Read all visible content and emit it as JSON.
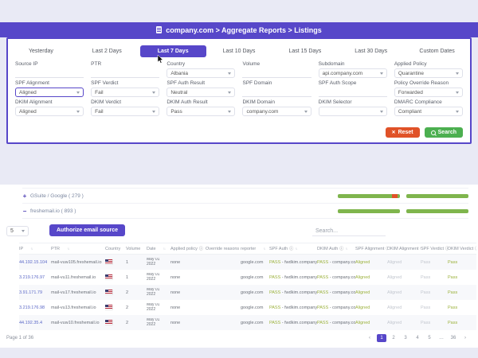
{
  "colors": {
    "accent": "#5747c9",
    "green": "#7fb54d",
    "red": "#e05228",
    "reset_btn": "#e05228",
    "search_btn": "#4caf50",
    "pass_text": "#9cb23d"
  },
  "titlebar": {
    "title": "company.com > Aggregate Reports > Listings"
  },
  "tabs": [
    {
      "label": "Yesterday"
    },
    {
      "label": "Last 2 Days"
    },
    {
      "label": "Last 7 Days",
      "active": true
    },
    {
      "label": "Last 10 Days"
    },
    {
      "label": "Last 15 Days"
    },
    {
      "label": "Last 30 Days"
    },
    {
      "label": "Custom Dates"
    }
  ],
  "filters": {
    "fields": [
      {
        "label": "Source IP",
        "type": "input",
        "value": ""
      },
      {
        "label": "PTR",
        "type": "input",
        "value": ""
      },
      {
        "label": "Country",
        "type": "select",
        "value": "Albania"
      },
      {
        "label": "Volume",
        "type": "input",
        "value": ""
      },
      {
        "label": "Subdomain",
        "type": "select",
        "value": "api.company.com"
      },
      {
        "label": "Applied Policy",
        "type": "select",
        "value": "Quarantine"
      },
      {
        "label": "SPF Alignment",
        "type": "select",
        "value": "Aligned",
        "focused": true
      },
      {
        "label": "SPF Verdict",
        "type": "select",
        "value": "Fail"
      },
      {
        "label": "SPF Auth Result",
        "type": "select",
        "value": "Neutral"
      },
      {
        "label": "SPF Domain",
        "type": "input",
        "value": ""
      },
      {
        "label": "SPF Auth Scope",
        "type": "input",
        "value": ""
      },
      {
        "label": "Policy Override Reason",
        "type": "select",
        "value": "Forwarded"
      },
      {
        "label": "DKIM Alignment",
        "type": "select",
        "value": "Aligned"
      },
      {
        "label": "DKIM Verdict",
        "type": "select",
        "value": "Fail"
      },
      {
        "label": "DKIM Auth Result",
        "type": "select",
        "value": "Pass"
      },
      {
        "label": "DKIM Domain",
        "type": "select",
        "value": "company.com"
      },
      {
        "label": "DKIM Selector",
        "type": "select",
        "value": ""
      },
      {
        "label": "DMARC Compliance",
        "type": "select",
        "value": "Compliant"
      }
    ],
    "reset_label": "Reset",
    "search_label": "Search"
  },
  "groups": [
    {
      "name": "GSuite / Google ( 279 )",
      "expand": "+",
      "bar1": [
        {
          "c": "green",
          "pct": 87
        },
        {
          "c": "red",
          "pct": 9
        },
        {
          "c": "green",
          "pct": 4
        }
      ],
      "bar2": [
        {
          "c": "green",
          "pct": 100
        }
      ]
    },
    {
      "name": "freshemail.io ( 893 )",
      "expand": "−",
      "bar1": [
        {
          "c": "green",
          "pct": 100
        }
      ],
      "bar2": [
        {
          "c": "green",
          "pct": 100
        }
      ]
    }
  ],
  "toolbar": {
    "page_size": "5",
    "authorize_label": "Authorize email source",
    "search_placeholder": "Search..."
  },
  "table": {
    "columns": [
      {
        "label": "IP",
        "sort": true
      },
      {
        "label": "PTR",
        "sort": true
      },
      {
        "label": "Country",
        "sort": true
      },
      {
        "label": "Volume",
        "sort": true
      },
      {
        "label": "Date",
        "sort": true
      },
      {
        "label": "Applied policy",
        "info": true,
        "sort": true
      },
      {
        "label": "Override reasons",
        "info": true,
        "sort": true
      },
      {
        "label": "reporter",
        "sort": true
      },
      {
        "label": "SPF Auth",
        "info": true,
        "sort": true
      },
      {
        "label": "DKIM Auth",
        "info": true,
        "sort": true
      },
      {
        "label": "SPF Alignment",
        "info": true,
        "sort": true
      },
      {
        "label": "DKIM Alignment",
        "info": true,
        "sort": true
      },
      {
        "label": "SPF Verdict",
        "info": true,
        "sort": true
      },
      {
        "label": "DKIM Verdict",
        "info": true,
        "sort": true
      }
    ],
    "rows": [
      {
        "ip": "44.192.15.104",
        "ptr": "mail-vuw105.freshemail.io",
        "volume": "1",
        "date_line1": "May 01",
        "date_line2": "2022",
        "policy": "none",
        "override": "",
        "reporter": "google.com",
        "spf_status": "PASS",
        "spf_domain": "- fwdkim.company.com",
        "dkim_status": "PASS",
        "dkim_domain": "- company.com",
        "spf_align": "Aligned",
        "dkim_align": "Aligned",
        "spf_verdict": "Pass",
        "dkim_verdict": "Pass"
      },
      {
        "ip": "3.219.176.97",
        "ptr": "mail-vu11.freshemail.io",
        "volume": "1",
        "date_line1": "May 01",
        "date_line2": "2022",
        "policy": "none",
        "override": "",
        "reporter": "google.com",
        "spf_status": "PASS",
        "spf_domain": "- fwdkim.company.com",
        "dkim_status": "PASS",
        "dkim_domain": "- company.com",
        "spf_align": "Aligned",
        "dkim_align": "Aligned",
        "spf_verdict": "Pass",
        "dkim_verdict": "Pass"
      },
      {
        "ip": "3.91.171.79",
        "ptr": "mail-vu17.freshemail.io",
        "volume": "2",
        "date_line1": "May 01",
        "date_line2": "2022",
        "policy": "none",
        "override": "",
        "reporter": "google.com",
        "spf_status": "PASS",
        "spf_domain": "- fwdkim.company.com",
        "dkim_status": "PASS",
        "dkim_domain": "- company.com",
        "spf_align": "Aligned",
        "dkim_align": "Aligned",
        "spf_verdict": "Pass",
        "dkim_verdict": "Pass"
      },
      {
        "ip": "3.219.176.98",
        "ptr": "mail-vu13.freshemail.io",
        "volume": "2",
        "date_line1": "May 01",
        "date_line2": "2022",
        "policy": "none",
        "override": "",
        "reporter": "google.com",
        "spf_status": "PASS",
        "spf_domain": "- fwdkim.company.com",
        "dkim_status": "PASS",
        "dkim_domain": "- company.com",
        "spf_align": "Aligned",
        "dkim_align": "Aligned",
        "spf_verdict": "Pass",
        "dkim_verdict": "Pass"
      },
      {
        "ip": "44.192.35.4",
        "ptr": "mail-vuw10.freshemail.io",
        "volume": "2",
        "date_line1": "May 01",
        "date_line2": "2022",
        "policy": "none",
        "override": "",
        "reporter": "google.com",
        "spf_status": "PASS",
        "spf_domain": "- fwdkim.company.com",
        "dkim_status": "PASS",
        "dkim_domain": "- company.com",
        "spf_align": "Aligned",
        "dkim_align": "Aligned",
        "spf_verdict": "Pass",
        "dkim_verdict": "Pass"
      }
    ]
  },
  "pagination": {
    "summary": "Page 1 of 36",
    "items": [
      {
        "label": "‹"
      },
      {
        "label": "1",
        "active": true
      },
      {
        "label": "2"
      },
      {
        "label": "3"
      },
      {
        "label": "4"
      },
      {
        "label": "5"
      },
      {
        "label": "…"
      },
      {
        "label": "36"
      },
      {
        "label": "›"
      }
    ]
  }
}
